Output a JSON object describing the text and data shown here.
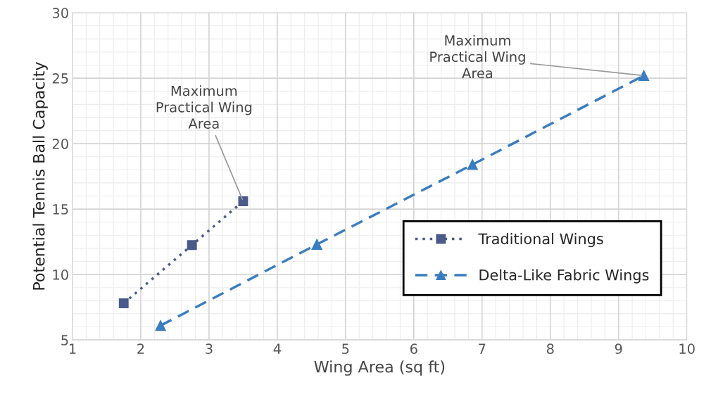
{
  "chart_data": {
    "type": "line",
    "xlabel": "Wing Area (sq ft)",
    "ylabel": "Potential Tennis Ball Capacity",
    "xlim": [
      1,
      10
    ],
    "xticks": [
      1,
      2,
      3,
      4,
      5,
      6,
      7,
      8,
      9,
      10
    ],
    "ylim": [
      5,
      30
    ],
    "yticks": [
      5,
      10,
      15,
      20,
      25,
      30
    ],
    "grid": true,
    "legend": "right",
    "series": [
      {
        "name": "Traditional Wings",
        "color": "#4a5a8a",
        "marker": "square",
        "line_style": "dotted",
        "x": [
          1.75,
          2.75,
          3.5
        ],
        "values": [
          7.8,
          12.25,
          15.6
        ]
      },
      {
        "name": "Delta-Like Fabric Wings",
        "color": "#3a7dbf",
        "marker": "triangle",
        "line_style": "dashed",
        "x": [
          2.29,
          4.58,
          6.86,
          9.37
        ],
        "values": [
          6.1,
          12.3,
          18.4,
          25.2
        ]
      }
    ],
    "annotations": [
      {
        "text": "Maximum\nPractical Wing\nArea",
        "x": 3.5,
        "y": 15.6
      },
      {
        "text": "Maximum\nPractical Wing\nArea",
        "x": 9.37,
        "y": 25.2
      }
    ]
  }
}
